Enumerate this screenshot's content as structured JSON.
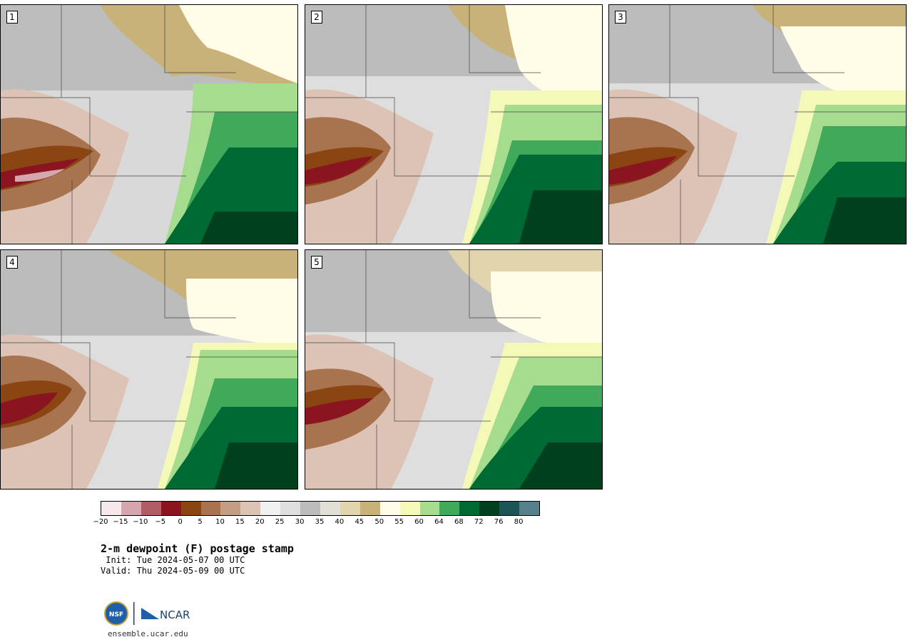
{
  "panels": [
    {
      "label": "1"
    },
    {
      "label": "2"
    },
    {
      "label": "3"
    },
    {
      "label": "4"
    },
    {
      "label": "5"
    }
  ],
  "colorbar": {
    "colors": [
      "#f5e9ec",
      "#d4a6ad",
      "#b05d66",
      "#8a1520",
      "#8b4513",
      "#a8734f",
      "#c49d85",
      "#ddc3b5",
      "#f0f0f0",
      "#dedede",
      "#bcbcbc",
      "#e0e0d4",
      "#e2d5ad",
      "#c9b27a",
      "#fffde8",
      "#f5f9b8",
      "#a6dc8e",
      "#40aa5a",
      "#006a35",
      "#00401f",
      "#1e5455",
      "#56808a"
    ],
    "ticks": [
      "−20",
      "−15",
      "−10",
      "−5",
      "0",
      "5",
      "10",
      "15",
      "20",
      "25",
      "30",
      "35",
      "40",
      "45",
      "50",
      "55",
      "60",
      "64",
      "68",
      "72",
      "76",
      "80"
    ]
  },
  "title": "2-m dewpoint (F) postage stamp",
  "init": " Init: Tue 2024-05-07 00 UTC",
  "valid": "Valid: Thu 2024-05-09 00 UTC",
  "logo": {
    "left_text": "NSF",
    "right_text": "NCAR"
  },
  "site": "ensemble.ucar.edu"
}
